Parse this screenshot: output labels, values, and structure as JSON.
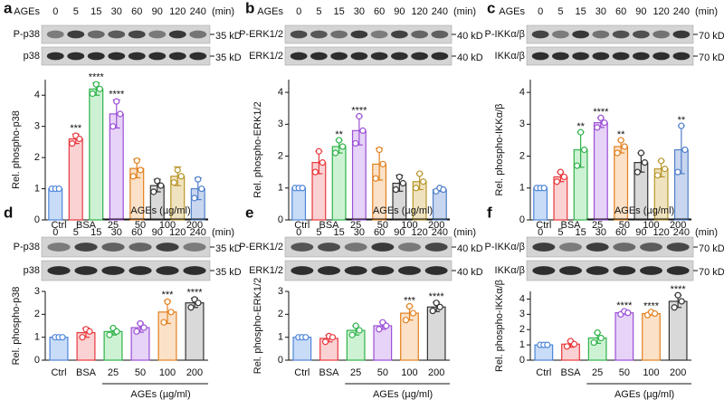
{
  "chart_data": [
    {
      "type": "bar",
      "panel": "a",
      "treatment": "AGEs",
      "treatment_lanes": [
        "0",
        "5",
        "15",
        "30",
        "60",
        "90",
        "120",
        "240"
      ],
      "lane_unit": "(min)",
      "blots": [
        {
          "label": "P-p38",
          "size": "35 kD"
        },
        {
          "label": "p38",
          "size": "35 kD"
        }
      ],
      "y_label": "Rel. phospho-p38",
      "categories": [
        "0",
        "5",
        "15",
        "30",
        "60",
        "90",
        "120",
        "240"
      ],
      "x_unit": "(min)",
      "values": [
        1,
        2.6,
        4.2,
        3.4,
        1.65,
        1.1,
        1.4,
        1.0
      ],
      "errors": [
        0.03,
        0.15,
        0.2,
        0.45,
        0.3,
        0.2,
        0.3,
        0.35
      ],
      "points": [
        [
          1,
          1,
          1
        ],
        [
          2.45,
          2.7,
          2.6
        ],
        [
          4.05,
          4.35,
          4.2
        ],
        [
          3.0,
          3.8,
          3.4
        ],
        [
          1.4,
          1.9,
          1.6
        ],
        [
          0.9,
          1.25,
          1.1
        ],
        [
          1.2,
          1.6,
          1.4
        ],
        [
          0.7,
          1.3,
          1.0
        ]
      ],
      "significance": [
        null,
        "***",
        "****",
        "****",
        null,
        null,
        null,
        null
      ],
      "colors": [
        "#4f86d9",
        "#e8383d",
        "#2fb34a",
        "#9b4fd6",
        "#e2801f",
        "#333333",
        "#b8962a",
        "#4f7fc9"
      ],
      "fill_colors": [
        "#c9dcf7",
        "#fbd2d3",
        "#cdf2d3",
        "#e6d3f7",
        "#fbe1c7",
        "#d9d9d9",
        "#efe3bf",
        "#c8d6ef"
      ],
      "ylim": [
        0,
        4.5
      ],
      "yticks": [
        0,
        1,
        2,
        3,
        4
      ]
    },
    {
      "type": "bar",
      "panel": "b",
      "treatment": "AGEs",
      "treatment_lanes": [
        "0",
        "5",
        "15",
        "30",
        "60",
        "90",
        "120",
        "240"
      ],
      "lane_unit": "(min)",
      "blots": [
        {
          "label": "P-ERK1/2",
          "size": "40 kD"
        },
        {
          "label": "ERK1/2",
          "size": "40 kD"
        }
      ],
      "y_label": "Rel. phospho-ERK1/2",
      "categories": [
        "0",
        "5",
        "15",
        "30",
        "60",
        "90",
        "120",
        "240"
      ],
      "x_unit": "(min)",
      "values": [
        1,
        1.8,
        2.3,
        2.8,
        1.75,
        1.15,
        1.2,
        0.95
      ],
      "errors": [
        0.03,
        0.35,
        0.2,
        0.45,
        0.5,
        0.25,
        0.25,
        0.05
      ],
      "points": [
        [
          1,
          1,
          1
        ],
        [
          1.5,
          2.15,
          1.8
        ],
        [
          2.1,
          2.5,
          2.3
        ],
        [
          2.4,
          3.25,
          2.8
        ],
        [
          1.3,
          2.2,
          1.75
        ],
        [
          0.95,
          1.35,
          1.15
        ],
        [
          1.0,
          1.45,
          1.2
        ],
        [
          0.9,
          1.0,
          0.95
        ]
      ],
      "significance": [
        null,
        null,
        "**",
        "****",
        null,
        null,
        null,
        null
      ],
      "colors": [
        "#4f86d9",
        "#e8383d",
        "#2fb34a",
        "#9b4fd6",
        "#e2801f",
        "#333333",
        "#b8962a",
        "#4f7fc9"
      ],
      "fill_colors": [
        "#c9dcf7",
        "#fbd2d3",
        "#cdf2d3",
        "#e6d3f7",
        "#fbe1c7",
        "#d9d9d9",
        "#efe3bf",
        "#c8d6ef"
      ],
      "ylim": [
        0,
        4.4
      ],
      "yticks": [
        0,
        1,
        2,
        3,
        4
      ]
    },
    {
      "type": "bar",
      "panel": "c",
      "treatment": "AGEs",
      "treatment_lanes": [
        "0",
        "5",
        "15",
        "30",
        "60",
        "90",
        "120",
        "240"
      ],
      "lane_unit": "(min)",
      "blots": [
        {
          "label": "P-IKKα/β",
          "size": "70 kD"
        },
        {
          "label": "IKKα/β",
          "size": "70 kD"
        }
      ],
      "y_label": "Rel. phospho-IKKα/β",
      "categories": [
        "0",
        "5",
        "15",
        "30",
        "60",
        "90",
        "120",
        "240"
      ],
      "x_unit": "(min)",
      "values": [
        1,
        1.35,
        2.2,
        3.05,
        2.3,
        1.8,
        1.6,
        2.2
      ],
      "errors": [
        0.03,
        0.15,
        0.55,
        0.15,
        0.2,
        0.3,
        0.25,
        0.75
      ],
      "points": [
        [
          1,
          1,
          1
        ],
        [
          1.2,
          1.5,
          1.35
        ],
        [
          1.7,
          2.75,
          2.2
        ],
        [
          2.9,
          3.2,
          3.05
        ],
        [
          2.1,
          2.5,
          2.3
        ],
        [
          1.5,
          2.1,
          1.8
        ],
        [
          1.4,
          1.85,
          1.6
        ],
        [
          1.5,
          2.95,
          2.2
        ]
      ],
      "significance": [
        null,
        null,
        "**",
        "****",
        "**",
        null,
        null,
        "**"
      ],
      "colors": [
        "#4f86d9",
        "#e8383d",
        "#2fb34a",
        "#9b4fd6",
        "#e2801f",
        "#333333",
        "#b8962a",
        "#4f7fc9"
      ],
      "fill_colors": [
        "#c9dcf7",
        "#fbd2d3",
        "#cdf2d3",
        "#e6d3f7",
        "#fbe1c7",
        "#d9d9d9",
        "#efe3bf",
        "#c8d6ef"
      ],
      "ylim": [
        0,
        4.4
      ],
      "yticks": [
        0,
        1,
        2,
        3,
        4
      ]
    },
    {
      "type": "bar",
      "panel": "d",
      "lane_labels": [
        "Ctrl",
        "BSA"
      ],
      "treatment": "AGEs (µg/ml)",
      "treatment_lanes": [
        "25",
        "50",
        "100",
        "200"
      ],
      "blots": [
        {
          "label": "P-p38",
          "size": "35 kD"
        },
        {
          "label": "p38",
          "size": "35 kD"
        }
      ],
      "y_label": "Rel. phospho-p38",
      "categories": [
        "Ctrl",
        "BSA",
        "25",
        "50",
        "100",
        "200"
      ],
      "x_group_label": "AGEs (µg/ml)",
      "values": [
        1,
        1.2,
        1.25,
        1.42,
        2.1,
        2.5
      ],
      "errors": [
        0.02,
        0.2,
        0.15,
        0.2,
        0.5,
        0.2
      ],
      "points": [
        [
          1,
          1,
          1
        ],
        [
          1.0,
          1.35,
          1.25
        ],
        [
          1.1,
          1.4,
          1.25
        ],
        [
          1.25,
          1.6,
          1.42
        ],
        [
          1.65,
          2.55,
          2.1
        ],
        [
          2.3,
          2.65,
          2.5
        ]
      ],
      "significance": [
        null,
        null,
        null,
        null,
        "***",
        "****"
      ],
      "colors": [
        "#4f86d9",
        "#e8383d",
        "#2fb34a",
        "#9b4fd6",
        "#e2801f",
        "#333333"
      ],
      "fill_colors": [
        "#c9dcf7",
        "#fbd2d3",
        "#cdf2d3",
        "#e6d3f7",
        "#fbe1c7",
        "#d9d9d9"
      ],
      "ylim": [
        0,
        3
      ],
      "yticks": [
        0,
        1,
        2,
        3
      ]
    },
    {
      "type": "bar",
      "panel": "e",
      "lane_labels": [
        "Ctrl",
        "BSA"
      ],
      "treatment": "AGEs (µg/ml)",
      "treatment_lanes": [
        "25",
        "50",
        "100",
        "200"
      ],
      "blots": [
        {
          "label": "P-ERK1/2",
          "size": "40 kD"
        },
        {
          "label": "ERK1/2",
          "size": "40 kD"
        }
      ],
      "y_label": "Rel. phospho-ERK1/2",
      "categories": [
        "Ctrl",
        "BSA",
        "25",
        "50",
        "100",
        "200"
      ],
      "x_group_label": "AGEs (µg/ml)",
      "values": [
        1,
        0.95,
        1.3,
        1.5,
        2.05,
        2.32
      ],
      "errors": [
        0.02,
        0.15,
        0.2,
        0.15,
        0.3,
        0.2
      ],
      "points": [
        [
          1,
          1,
          1
        ],
        [
          0.8,
          1.05,
          1.0
        ],
        [
          1.1,
          1.5,
          1.3
        ],
        [
          1.35,
          1.65,
          1.5
        ],
        [
          1.75,
          2.35,
          2.05
        ],
        [
          2.15,
          2.5,
          2.32
        ]
      ],
      "significance": [
        null,
        null,
        null,
        null,
        "***",
        "****"
      ],
      "colors": [
        "#4f86d9",
        "#e8383d",
        "#2fb34a",
        "#9b4fd6",
        "#e2801f",
        "#333333"
      ],
      "fill_colors": [
        "#c9dcf7",
        "#fbd2d3",
        "#cdf2d3",
        "#e6d3f7",
        "#fbe1c7",
        "#d9d9d9"
      ],
      "ylim": [
        0,
        3
      ],
      "yticks": [
        0,
        1,
        2,
        3
      ]
    },
    {
      "type": "bar",
      "panel": "f",
      "lane_labels": [
        "Ctrl",
        "BSA"
      ],
      "treatment": "AGEs (µg/ml)",
      "treatment_lanes": [
        "25",
        "50",
        "100",
        "200"
      ],
      "blots": [
        {
          "label": "P-IKKα/β",
          "size": "70 kD"
        },
        {
          "label": "IKKα/β",
          "size": "70 kD"
        }
      ],
      "y_label": "Rel. phospho-IKKα/β",
      "categories": [
        "Ctrl",
        "BSA",
        "25",
        "50",
        "100",
        "200"
      ],
      "x_group_label": "AGEs (µg/ml)",
      "values": [
        1,
        1.05,
        1.45,
        3.1,
        3.05,
        3.85
      ],
      "errors": [
        0.02,
        0.2,
        0.35,
        0.1,
        0.1,
        0.4
      ],
      "points": [
        [
          1,
          1,
          1
        ],
        [
          0.9,
          1.25,
          1.05
        ],
        [
          1.15,
          1.8,
          1.45
        ],
        [
          3.0,
          3.2,
          3.1
        ],
        [
          2.95,
          3.15,
          3.05
        ],
        [
          3.45,
          4.25,
          3.85
        ]
      ],
      "significance": [
        null,
        null,
        null,
        "****",
        "****",
        "****"
      ],
      "colors": [
        "#4f86d9",
        "#e8383d",
        "#2fb34a",
        "#9b4fd6",
        "#e2801f",
        "#333333"
      ],
      "fill_colors": [
        "#c9dcf7",
        "#fbd2d3",
        "#cdf2d3",
        "#e6d3f7",
        "#fbe1c7",
        "#d9d9d9"
      ],
      "ylim": [
        0,
        4.5
      ],
      "yticks": [
        0,
        1,
        2,
        3,
        4
      ]
    }
  ]
}
